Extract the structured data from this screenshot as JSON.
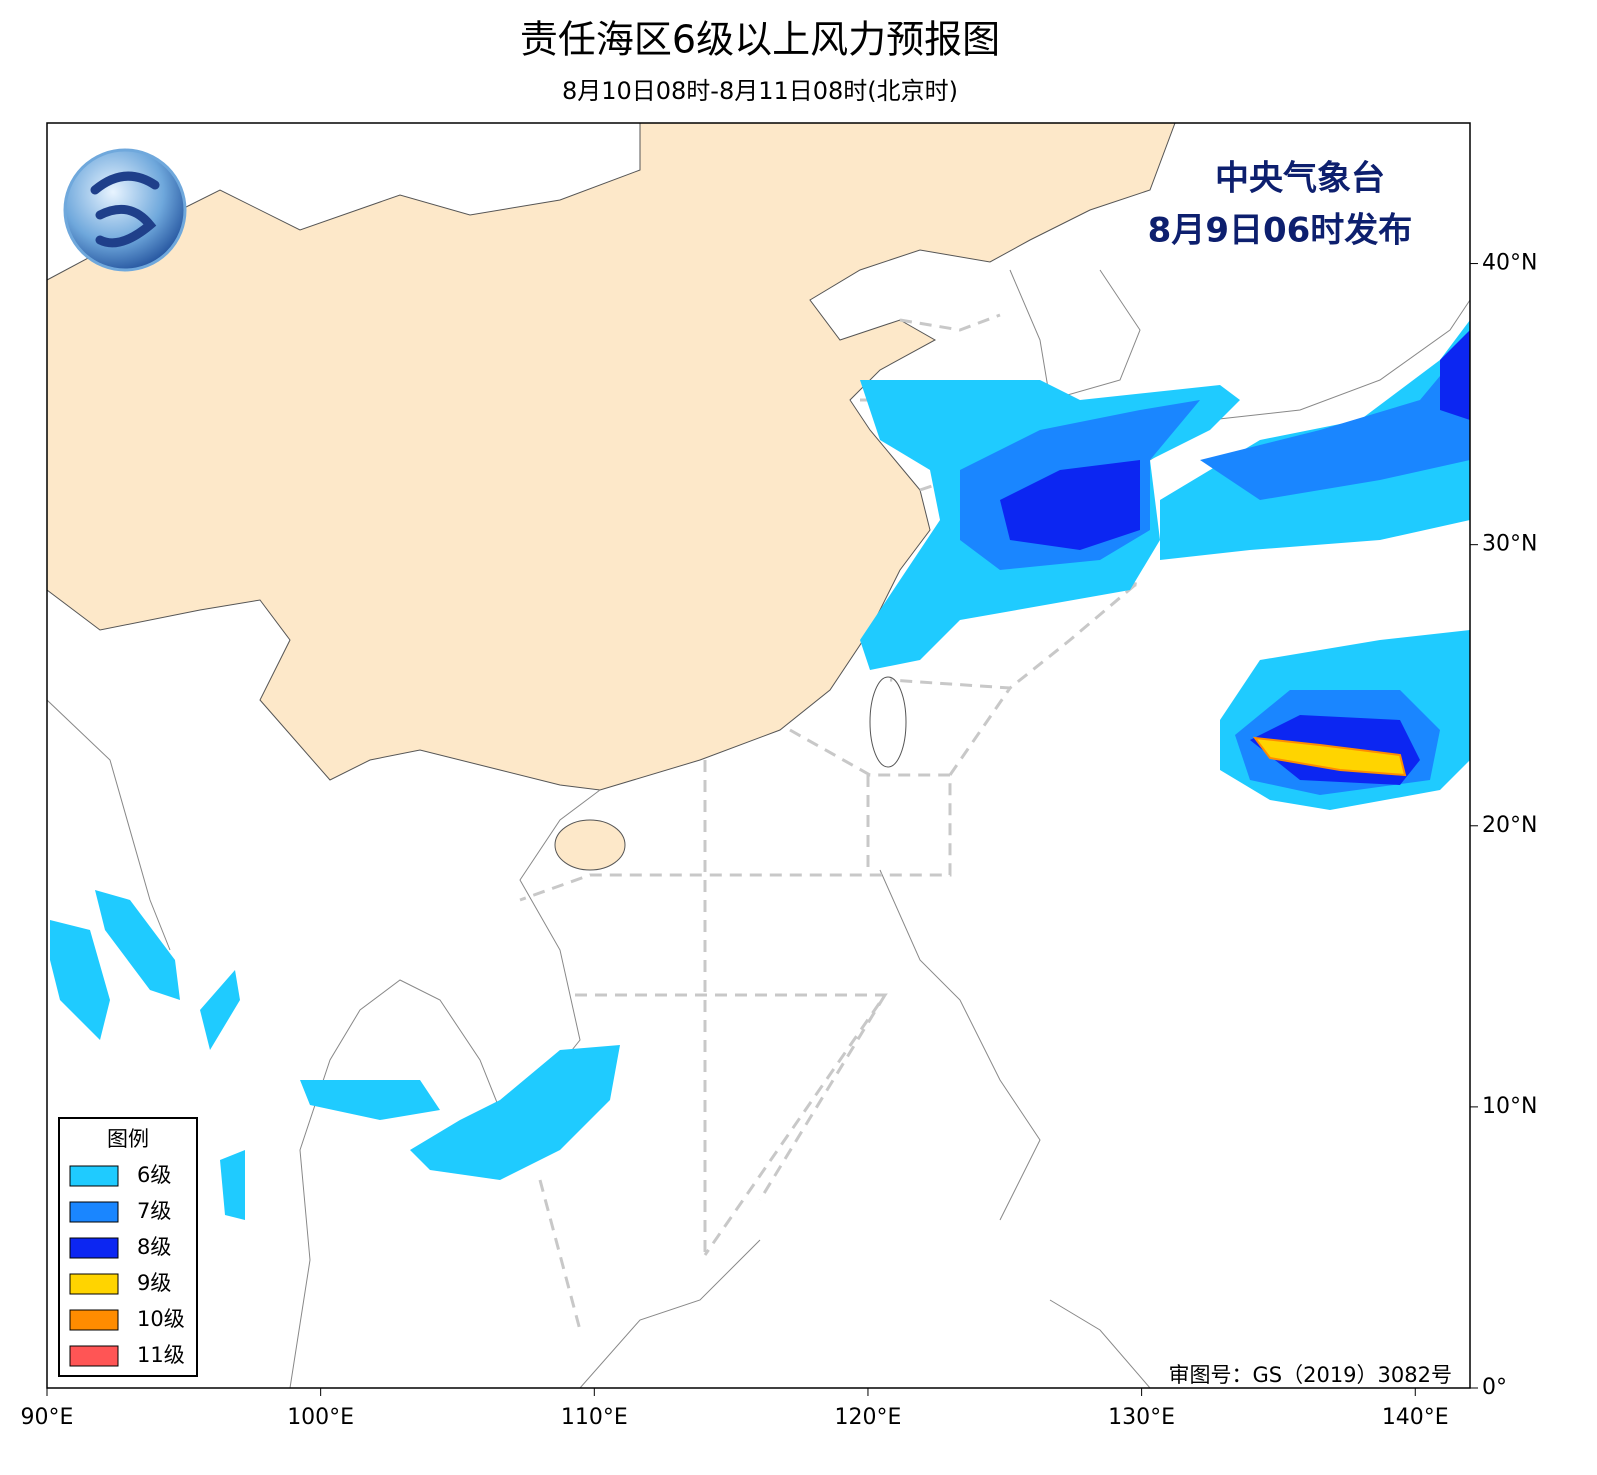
{
  "title": "责任海区6级以上风力预报图",
  "subtitle": "8月10日08时-8月11日08时(北京时)",
  "issuer": [
    "中央气象台",
    "8月9日06时发布"
  ],
  "review_number": "审图号：GS（2019）3082号",
  "map": {
    "xlim": [
      90,
      142
    ],
    "ylim": [
      0,
      45
    ],
    "xticks": [
      {
        "value": 90,
        "label": "90°E"
      },
      {
        "value": 100,
        "label": "100°E"
      },
      {
        "value": 110,
        "label": "110°E"
      },
      {
        "value": 120,
        "label": "120°E"
      },
      {
        "value": 130,
        "label": "130°E"
      },
      {
        "value": 140,
        "label": "140°E"
      }
    ],
    "yticks": [
      {
        "value": 0,
        "label": "0°"
      },
      {
        "value": 10,
        "label": "10°N"
      },
      {
        "value": 20,
        "label": "20°N"
      },
      {
        "value": 30,
        "label": "30°N"
      },
      {
        "value": 40,
        "label": "40°N"
      }
    ]
  },
  "legend": {
    "title": "图例",
    "items": [
      {
        "label": "6级",
        "color": "#1fcbff"
      },
      {
        "label": "7级",
        "color": "#1a86ff"
      },
      {
        "label": "8级",
        "color": "#0c26f2"
      },
      {
        "label": "9级",
        "color": "#ffd400"
      },
      {
        "label": "10级",
        "color": "#ff8c00"
      },
      {
        "label": "11级",
        "color": "#ff5555"
      }
    ]
  }
}
